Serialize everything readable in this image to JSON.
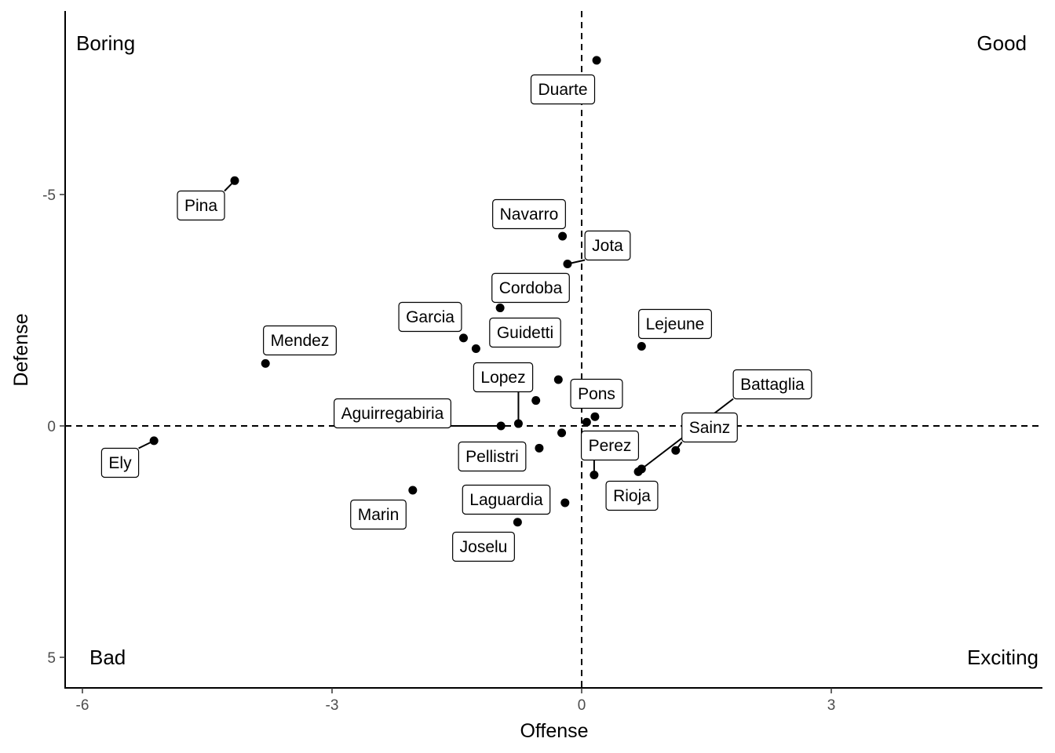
{
  "chart_data": {
    "type": "scatter",
    "xlabel": "Offense",
    "ylabel": "Defense",
    "xlim": [
      -6.2,
      5.5
    ],
    "ylim": [
      5.6,
      -9.1
    ],
    "y_reversed": true,
    "x_ticks": [
      -6,
      -3,
      0,
      3
    ],
    "y_ticks": [
      -5,
      0,
      5
    ],
    "grid": false,
    "reference_lines": {
      "x": 0,
      "y": 0
    },
    "quadrant_labels": {
      "top_left": "Boring",
      "top_right": "Good",
      "bottom_left": "Bad",
      "bottom_right": "Exciting"
    },
    "points": [
      {
        "name": "Duarte",
        "x": 0.18,
        "y": -7.9
      },
      {
        "name": "Pina",
        "x": -4.17,
        "y": -5.3
      },
      {
        "name": "Navarro",
        "x": -0.23,
        "y": -4.1
      },
      {
        "name": "Jota",
        "x": -0.17,
        "y": -3.5
      },
      {
        "name": "Cordoba",
        "x": -0.98,
        "y": -2.55
      },
      {
        "name": "Garcia",
        "x": -1.42,
        "y": -1.9
      },
      {
        "name": "Guidetti",
        "x": -1.27,
        "y": -1.67
      },
      {
        "name": "Mendez",
        "x": -3.8,
        "y": -1.35
      },
      {
        "name": "Lejeune",
        "x": 0.72,
        "y": -1.72
      },
      {
        "name": "Lopez",
        "x": -0.76,
        "y": -0.05
      },
      {
        "name": "Aguirregabiria",
        "x": -0.97,
        "y": 0.0
      },
      {
        "name": "Pons",
        "x": 0.06,
        "y": -0.08
      },
      {
        "name": "Battaglia",
        "x": 0.72,
        "y": 0.93
      },
      {
        "name": "Sainz",
        "x": 1.13,
        "y": 0.53
      },
      {
        "name": "Perez",
        "x": 0.15,
        "y": 1.06
      },
      {
        "name": "Rioja",
        "x": 0.68,
        "y": 0.99
      },
      {
        "name": "Pellistri",
        "x": -0.51,
        "y": 0.48
      },
      {
        "name": "Marin",
        "x": -2.03,
        "y": 1.39
      },
      {
        "name": "Laguardia",
        "x": -0.2,
        "y": 1.66
      },
      {
        "name": "Joselu",
        "x": -0.77,
        "y": 2.08
      },
      {
        "name": "Ely",
        "x": -5.14,
        "y": 0.32
      }
    ],
    "unlabeled_points": [
      {
        "x": -0.28,
        "y": -1.0
      },
      {
        "x": -0.55,
        "y": -0.55
      },
      {
        "x": 0.16,
        "y": -0.2
      },
      {
        "x": -0.24,
        "y": 0.15
      }
    ]
  }
}
